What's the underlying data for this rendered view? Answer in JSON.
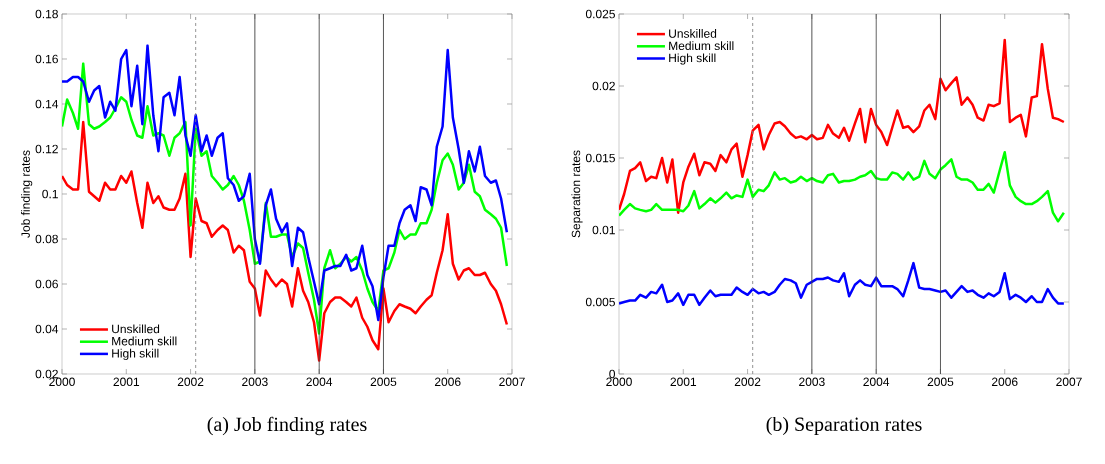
{
  "chart_data": [
    {
      "type": "line",
      "title": "(a) Job finding rates",
      "ylabel": "Job finding rates",
      "x": [
        "2000-01",
        "2000-02",
        "2000-03",
        "2000-04",
        "2000-05",
        "2000-06",
        "2000-07",
        "2000-08",
        "2000-09",
        "2000-10",
        "2000-11",
        "2000-12",
        "2001-01",
        "2001-02",
        "2001-03",
        "2001-04",
        "2001-05",
        "2001-06",
        "2001-07",
        "2001-08",
        "2001-09",
        "2001-10",
        "2001-11",
        "2001-12",
        "2002-01",
        "2002-02",
        "2002-03",
        "2002-04",
        "2002-05",
        "2002-06",
        "2002-07",
        "2002-08",
        "2002-09",
        "2002-10",
        "2002-11",
        "2002-12",
        "2003-01",
        "2003-02",
        "2003-03",
        "2003-04",
        "2003-05",
        "2003-06",
        "2003-07",
        "2003-08",
        "2003-09",
        "2003-10",
        "2003-11",
        "2003-12",
        "2004-01",
        "2004-02",
        "2004-03",
        "2004-04",
        "2004-05",
        "2004-06",
        "2004-07",
        "2004-08",
        "2004-09",
        "2004-10",
        "2004-11",
        "2004-12",
        "2005-01",
        "2005-02",
        "2005-03",
        "2005-04",
        "2005-05",
        "2005-06",
        "2005-07",
        "2005-08",
        "2005-09",
        "2005-10",
        "2005-11",
        "2005-12",
        "2006-01",
        "2006-02",
        "2006-03",
        "2006-04",
        "2006-05",
        "2006-06",
        "2006-07",
        "2006-08",
        "2006-09",
        "2006-10",
        "2006-11",
        "2006-12"
      ],
      "series": [
        {
          "name": "Unskilled",
          "color": "#ff0000",
          "values": [
            0.108,
            0.104,
            0.102,
            0.102,
            0.132,
            0.101,
            0.099,
            0.097,
            0.105,
            0.102,
            0.102,
            0.108,
            0.105,
            0.11,
            0.096,
            0.085,
            0.105,
            0.096,
            0.099,
            0.094,
            0.093,
            0.093,
            0.098,
            0.109,
            0.072,
            0.098,
            0.088,
            0.087,
            0.081,
            0.084,
            0.086,
            0.084,
            0.074,
            0.077,
            0.075,
            0.061,
            0.058,
            0.046,
            0.066,
            0.062,
            0.059,
            0.062,
            0.06,
            0.05,
            0.067,
            0.057,
            0.052,
            0.043,
            0.026,
            0.047,
            0.052,
            0.054,
            0.054,
            0.052,
            0.05,
            0.054,
            0.045,
            0.041,
            0.035,
            0.031,
            0.058,
            0.043,
            0.048,
            0.051,
            0.05,
            0.049,
            0.047,
            0.05,
            0.053,
            0.055,
            0.065,
            0.075,
            0.091,
            0.069,
            0.062,
            0.066,
            0.067,
            0.064,
            0.064,
            0.065,
            0.06,
            0.057,
            0.051,
            0.042
          ]
        },
        {
          "name": "Medium skill",
          "color": "#00ff00",
          "values": [
            0.13,
            0.142,
            0.136,
            0.129,
            0.158,
            0.131,
            0.129,
            0.13,
            0.132,
            0.134,
            0.138,
            0.143,
            0.141,
            0.133,
            0.126,
            0.125,
            0.139,
            0.126,
            0.127,
            0.126,
            0.117,
            0.125,
            0.127,
            0.132,
            0.086,
            0.129,
            0.117,
            0.119,
            0.108,
            0.105,
            0.102,
            0.104,
            0.108,
            0.104,
            0.097,
            0.084,
            0.069,
            0.07,
            0.096,
            0.081,
            0.081,
            0.082,
            0.082,
            0.072,
            0.078,
            0.076,
            0.065,
            0.053,
            0.038,
            0.067,
            0.075,
            0.067,
            0.069,
            0.072,
            0.07,
            0.072,
            0.066,
            0.058,
            0.052,
            0.048,
            0.066,
            0.067,
            0.074,
            0.084,
            0.08,
            0.082,
            0.082,
            0.087,
            0.087,
            0.093,
            0.105,
            0.115,
            0.118,
            0.113,
            0.102,
            0.105,
            0.113,
            0.101,
            0.099,
            0.093,
            0.091,
            0.089,
            0.085,
            0.068
          ]
        },
        {
          "name": "High skill",
          "color": "#0000ff",
          "values": [
            0.15,
            0.15,
            0.152,
            0.152,
            0.15,
            0.141,
            0.146,
            0.148,
            0.134,
            0.141,
            0.137,
            0.16,
            0.164,
            0.139,
            0.157,
            0.131,
            0.166,
            0.135,
            0.119,
            0.143,
            0.145,
            0.135,
            0.152,
            0.126,
            0.117,
            0.135,
            0.119,
            0.126,
            0.117,
            0.125,
            0.127,
            0.107,
            0.104,
            0.097,
            0.099,
            0.109,
            0.08,
            0.069,
            0.095,
            0.102,
            0.089,
            0.083,
            0.087,
            0.068,
            0.085,
            0.083,
            0.072,
            0.061,
            0.051,
            0.066,
            0.067,
            0.068,
            0.068,
            0.073,
            0.066,
            0.067,
            0.077,
            0.064,
            0.059,
            0.044,
            0.063,
            0.077,
            0.077,
            0.087,
            0.093,
            0.095,
            0.088,
            0.103,
            0.102,
            0.095,
            0.121,
            0.13,
            0.164,
            0.134,
            0.12,
            0.105,
            0.119,
            0.11,
            0.121,
            0.108,
            0.105,
            0.106,
            0.098,
            0.083
          ]
        }
      ],
      "xlim": [
        "2000-01",
        "2007-01"
      ],
      "xticks": [
        "2000",
        "2001",
        "2002",
        "2003",
        "2004",
        "2005",
        "2006",
        "2007"
      ],
      "ylim": [
        0.02,
        0.18
      ],
      "yticks": [
        0.02,
        0.04,
        0.06,
        0.08,
        0.1,
        0.12,
        0.14,
        0.16,
        0.18
      ],
      "ref_lines": [
        {
          "axis": "x",
          "value": "2002-02",
          "color": "#808080",
          "line_style": "dashed"
        },
        {
          "axis": "x",
          "value": "2003-01",
          "color": "#404040",
          "line_style": "solid"
        },
        {
          "axis": "x",
          "value": "2004-01",
          "color": "#404040",
          "line_style": "solid"
        },
        {
          "axis": "x",
          "value": "2005-01",
          "color": "#404040",
          "line_style": "solid"
        }
      ],
      "legend": "bottom left",
      "marker": "none"
    },
    {
      "type": "line",
      "title": "(b) Separation rates",
      "ylabel": "Separation rates",
      "x": [
        "2000-01",
        "2000-02",
        "2000-03",
        "2000-04",
        "2000-05",
        "2000-06",
        "2000-07",
        "2000-08",
        "2000-09",
        "2000-10",
        "2000-11",
        "2000-12",
        "2001-01",
        "2001-02",
        "2001-03",
        "2001-04",
        "2001-05",
        "2001-06",
        "2001-07",
        "2001-08",
        "2001-09",
        "2001-10",
        "2001-11",
        "2001-12",
        "2002-01",
        "2002-02",
        "2002-03",
        "2002-04",
        "2002-05",
        "2002-06",
        "2002-07",
        "2002-08",
        "2002-09",
        "2002-10",
        "2002-11",
        "2002-12",
        "2003-01",
        "2003-02",
        "2003-03",
        "2003-04",
        "2003-05",
        "2003-06",
        "2003-07",
        "2003-08",
        "2003-09",
        "2003-10",
        "2003-11",
        "2003-12",
        "2004-01",
        "2004-02",
        "2004-03",
        "2004-04",
        "2004-05",
        "2004-06",
        "2004-07",
        "2004-08",
        "2004-09",
        "2004-10",
        "2004-11",
        "2004-12",
        "2005-01",
        "2005-02",
        "2005-03",
        "2005-04",
        "2005-05",
        "2005-06",
        "2005-07",
        "2005-08",
        "2005-09",
        "2005-10",
        "2005-11",
        "2005-12",
        "2006-01",
        "2006-02",
        "2006-03",
        "2006-04",
        "2006-05",
        "2006-06",
        "2006-07",
        "2006-08",
        "2006-09",
        "2006-10",
        "2006-11",
        "2006-12"
      ],
      "series": [
        {
          "name": "Unskilled",
          "color": "#ff0000",
          "values": [
            0.0114,
            0.0125,
            0.0141,
            0.0143,
            0.0147,
            0.0134,
            0.0137,
            0.0136,
            0.015,
            0.0133,
            0.0149,
            0.0112,
            0.0133,
            0.0144,
            0.0153,
            0.0138,
            0.0147,
            0.0146,
            0.0141,
            0.0152,
            0.0147,
            0.0156,
            0.016,
            0.0137,
            0.0152,
            0.0169,
            0.0173,
            0.0156,
            0.0166,
            0.0174,
            0.0175,
            0.0172,
            0.0167,
            0.0164,
            0.0165,
            0.0163,
            0.0166,
            0.0163,
            0.0164,
            0.0173,
            0.0167,
            0.0164,
            0.0171,
            0.0162,
            0.0174,
            0.0184,
            0.0161,
            0.0184,
            0.0173,
            0.0168,
            0.0159,
            0.0171,
            0.0183,
            0.0171,
            0.0172,
            0.0168,
            0.0172,
            0.0183,
            0.0187,
            0.0177,
            0.0205,
            0.0197,
            0.0202,
            0.0206,
            0.0187,
            0.0192,
            0.0187,
            0.0178,
            0.0176,
            0.0187,
            0.0186,
            0.0188,
            0.0232,
            0.0175,
            0.0178,
            0.018,
            0.0165,
            0.0192,
            0.0193,
            0.0229,
            0.0198,
            0.0178,
            0.0177,
            0.0175
          ]
        },
        {
          "name": "Medium skill",
          "color": "#00ff00",
          "values": [
            0.011,
            0.0114,
            0.0118,
            0.0115,
            0.0114,
            0.0113,
            0.0114,
            0.0118,
            0.0114,
            0.0114,
            0.0114,
            0.0114,
            0.0113,
            0.0117,
            0.0127,
            0.0115,
            0.0118,
            0.0122,
            0.0119,
            0.0122,
            0.0126,
            0.0122,
            0.0124,
            0.0123,
            0.0135,
            0.0123,
            0.0128,
            0.0127,
            0.0131,
            0.014,
            0.0135,
            0.0136,
            0.0133,
            0.0134,
            0.0137,
            0.0134,
            0.0136,
            0.0134,
            0.0133,
            0.0138,
            0.0139,
            0.0133,
            0.0134,
            0.0134,
            0.0135,
            0.0137,
            0.0138,
            0.0141,
            0.0136,
            0.0135,
            0.0135,
            0.014,
            0.0139,
            0.0135,
            0.014,
            0.0135,
            0.0137,
            0.0148,
            0.0139,
            0.0136,
            0.0142,
            0.0145,
            0.0149,
            0.0137,
            0.0135,
            0.0135,
            0.0133,
            0.0128,
            0.0128,
            0.0132,
            0.0126,
            0.0141,
            0.0154,
            0.0131,
            0.0123,
            0.012,
            0.0118,
            0.0118,
            0.012,
            0.0123,
            0.0127,
            0.0112,
            0.0106,
            0.0112
          ]
        },
        {
          "name": "High skill",
          "color": "#0000ff",
          "values": [
            0.0049,
            0.005,
            0.0051,
            0.0051,
            0.0055,
            0.0053,
            0.0057,
            0.0056,
            0.0062,
            0.005,
            0.0051,
            0.0056,
            0.0048,
            0.0055,
            0.0055,
            0.0048,
            0.0053,
            0.0058,
            0.0054,
            0.0055,
            0.0055,
            0.0055,
            0.006,
            0.0057,
            0.0055,
            0.0059,
            0.0056,
            0.0057,
            0.0055,
            0.0057,
            0.0062,
            0.0066,
            0.0065,
            0.0063,
            0.0053,
            0.0062,
            0.0064,
            0.0066,
            0.0066,
            0.0067,
            0.0065,
            0.0064,
            0.007,
            0.0054,
            0.0062,
            0.0065,
            0.0062,
            0.0061,
            0.0067,
            0.0061,
            0.0061,
            0.0061,
            0.0059,
            0.0054,
            0.0065,
            0.0077,
            0.006,
            0.0059,
            0.0059,
            0.0058,
            0.0057,
            0.0058,
            0.0053,
            0.0057,
            0.0061,
            0.0057,
            0.0058,
            0.0055,
            0.0053,
            0.0056,
            0.0054,
            0.0057,
            0.007,
            0.0052,
            0.0055,
            0.0053,
            0.005,
            0.0054,
            0.005,
            0.005,
            0.0059,
            0.0053,
            0.0049,
            0.0049
          ]
        }
      ],
      "xlim": [
        "2000-01",
        "2007-01"
      ],
      "xticks": [
        "2000",
        "2001",
        "2002",
        "2003",
        "2004",
        "2005",
        "2006",
        "2007"
      ],
      "ylim": [
        0,
        0.025
      ],
      "yticks": [
        0,
        0.005,
        0.01,
        0.015,
        0.02,
        0.025
      ],
      "ref_lines": [
        {
          "axis": "x",
          "value": "2002-02",
          "color": "#808080",
          "line_style": "dashed"
        },
        {
          "axis": "x",
          "value": "2003-01",
          "color": "#404040",
          "line_style": "solid"
        },
        {
          "axis": "x",
          "value": "2004-01",
          "color": "#404040",
          "line_style": "solid"
        },
        {
          "axis": "x",
          "value": "2005-01",
          "color": "#404040",
          "line_style": "solid"
        }
      ],
      "legend": "top left",
      "marker": "none"
    }
  ]
}
